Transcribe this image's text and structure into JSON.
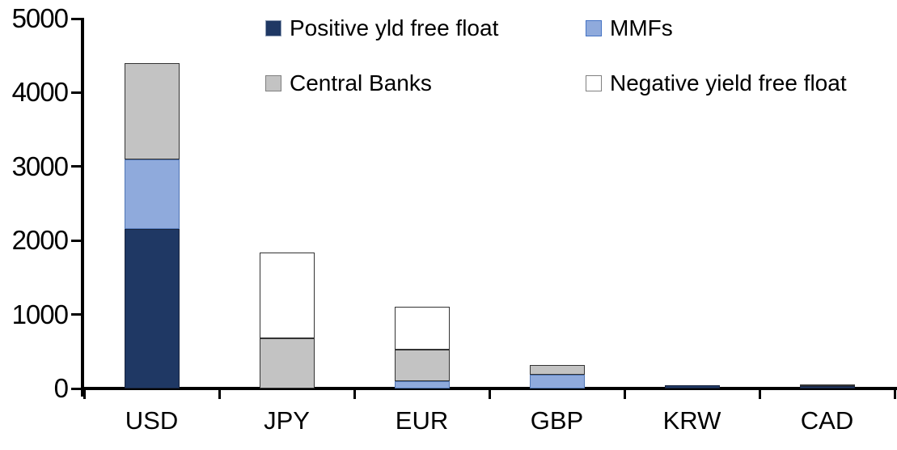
{
  "chart_data": {
    "type": "bar",
    "subtype": "stacked-vertical",
    "title": "",
    "xlabel": "",
    "ylabel": "",
    "categories": [
      "USD",
      "JPY",
      "EUR",
      "GBP",
      "KRW",
      "CAD"
    ],
    "series": [
      {
        "name": "Positive yld free float",
        "color": "#1F3864",
        "border": "#17233D",
        "swatch_border": "#8E9DB5",
        "values": [
          2150,
          0,
          0,
          0,
          40,
          30
        ]
      },
      {
        "name": "MMFs",
        "color": "#8FAADC",
        "border": "#4F74B3",
        "swatch_border": "#4472C4",
        "values": [
          950,
          0,
          100,
          185,
          0,
          0
        ]
      },
      {
        "name": "Central Banks",
        "color": "#C3C3C3",
        "border": "#333333",
        "swatch_border": "#808080",
        "values": [
          1300,
          680,
          430,
          130,
          0,
          30
        ]
      },
      {
        "name": "Negative yield free float",
        "color": "#FFFFFF",
        "border": "#333333",
        "swatch_border": "#808080",
        "values": [
          0,
          1160,
          570,
          0,
          0,
          0
        ]
      }
    ],
    "totals": [
      4400,
      1840,
      1100,
      315,
      40,
      60
    ],
    "ylim": [
      0,
      5000
    ],
    "yticks": [
      0,
      1000,
      2000,
      3000,
      4000,
      5000
    ],
    "grid": false,
    "legend_position": "top",
    "legend_rows": [
      [
        0,
        1
      ],
      [
        2,
        3
      ]
    ],
    "axis_color": "#000000"
  }
}
